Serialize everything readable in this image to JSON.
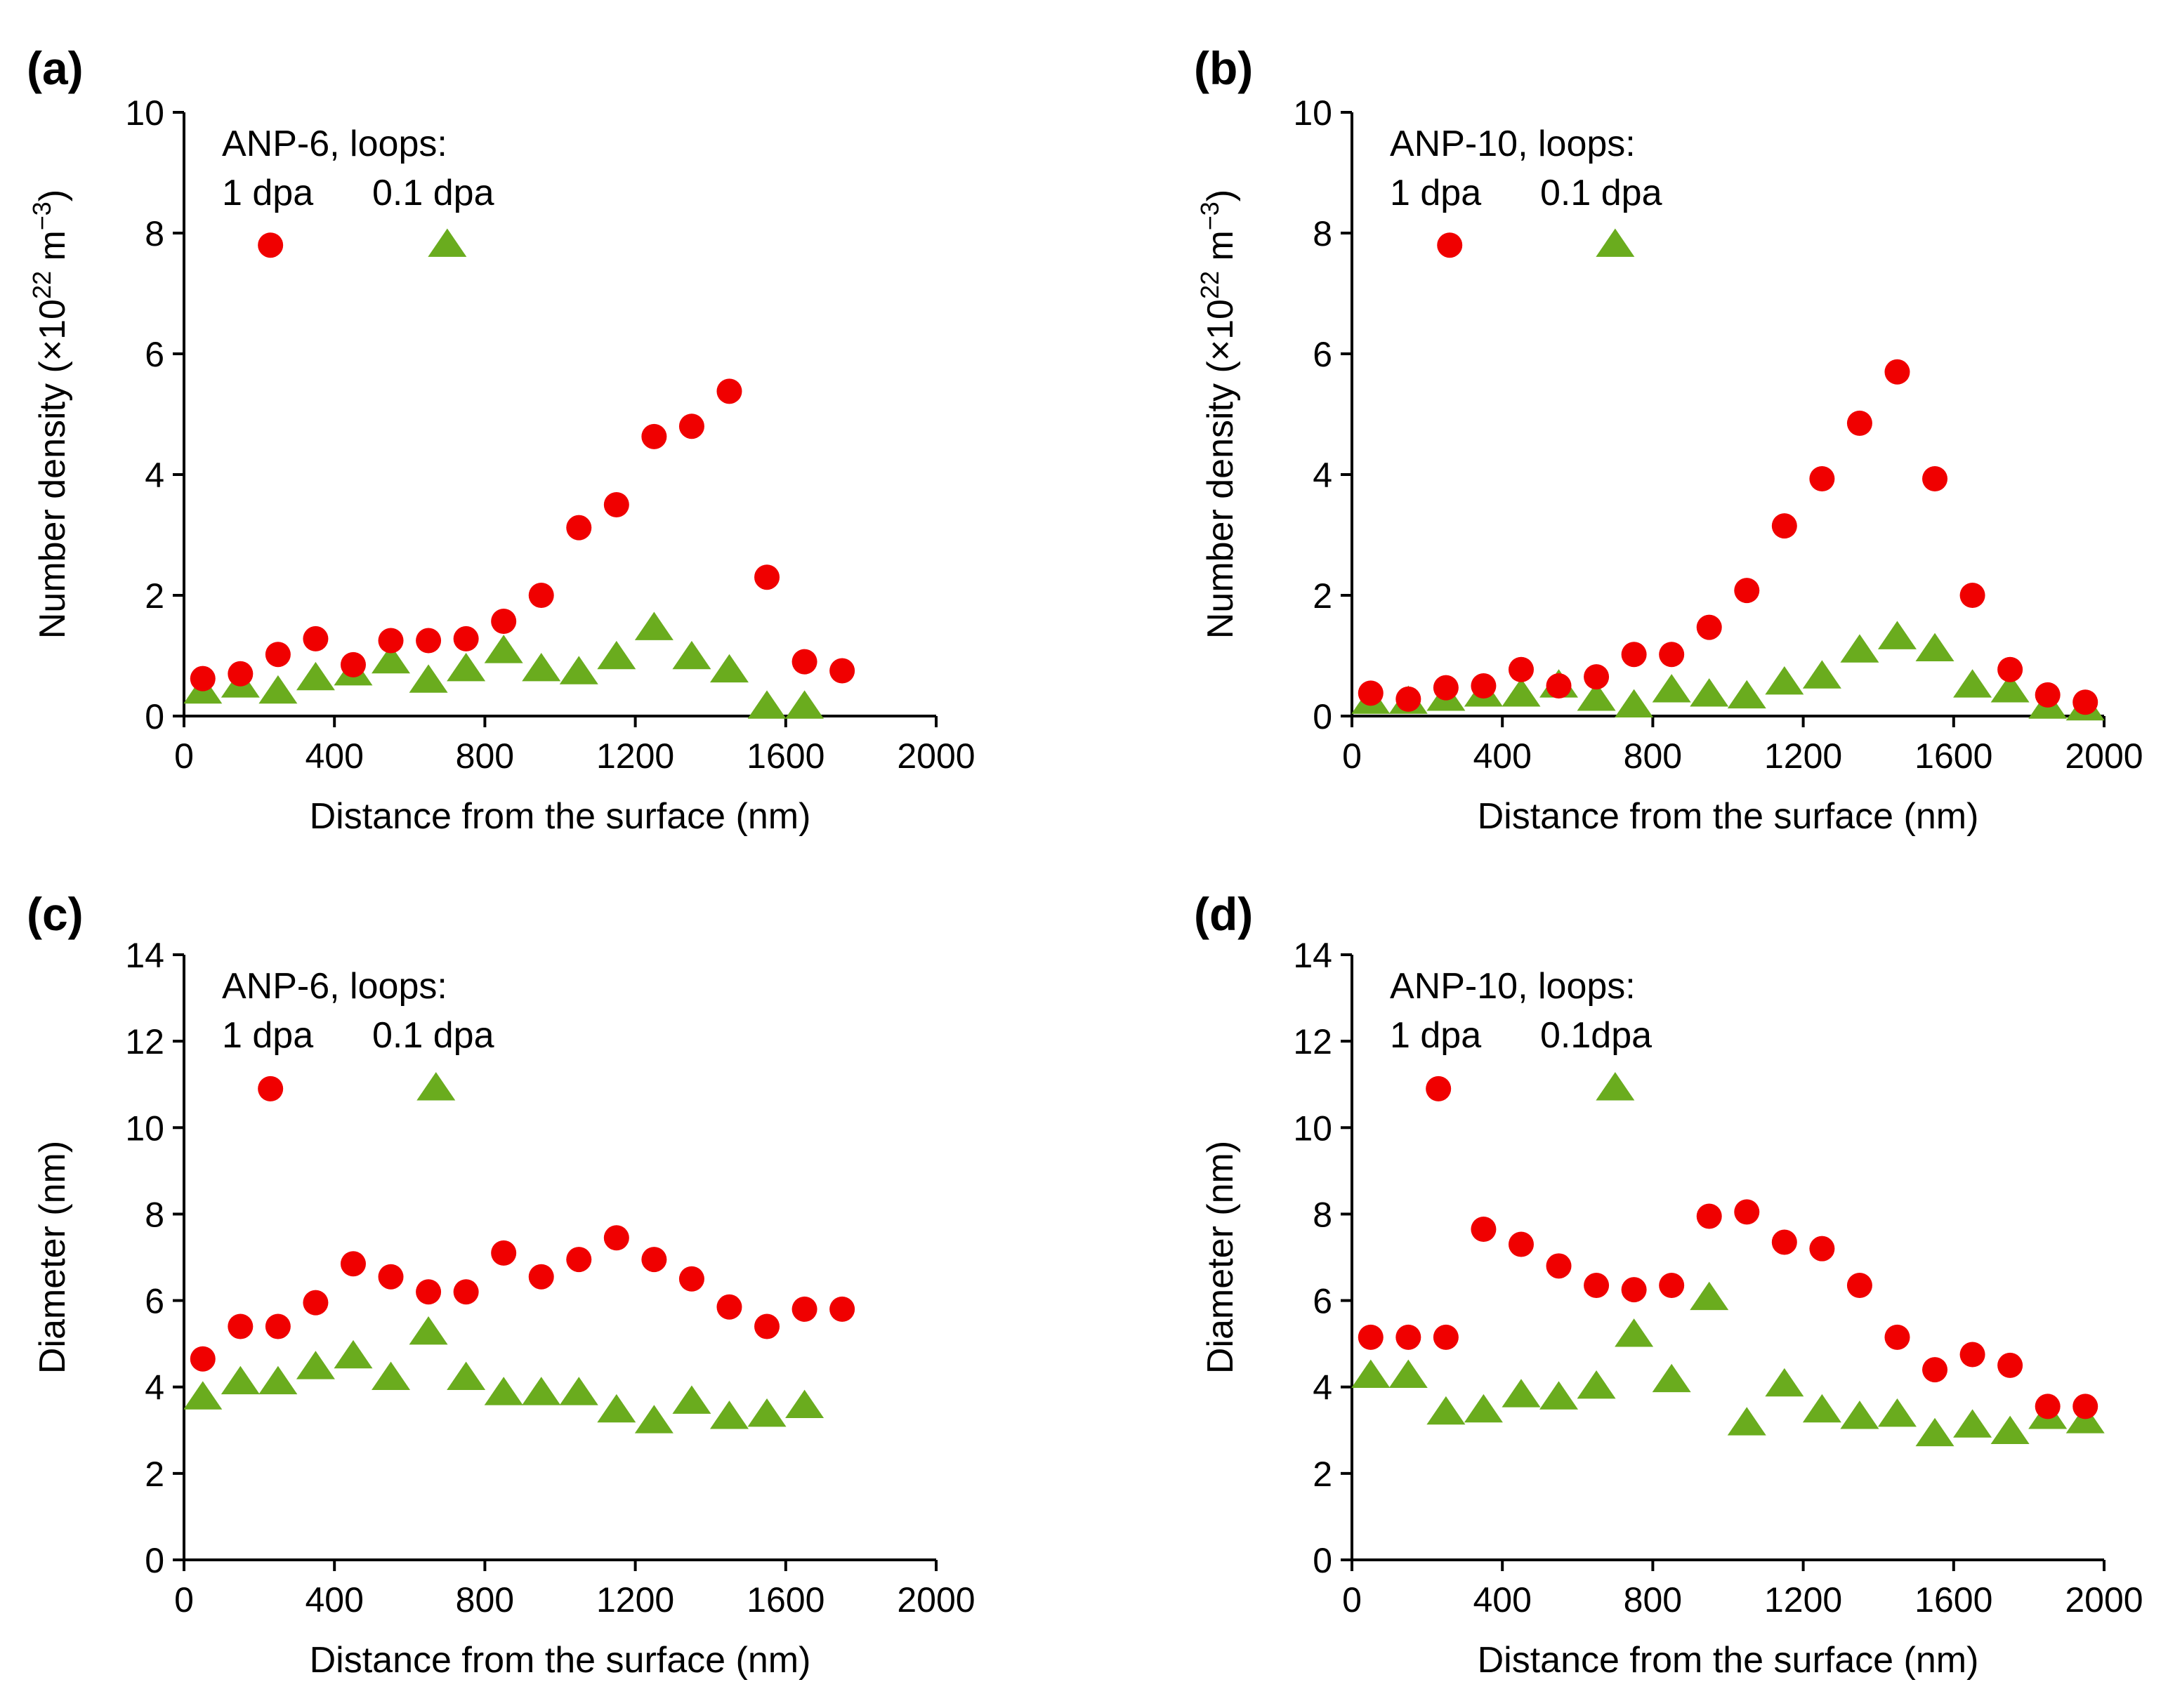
{
  "colors": {
    "series_1dpa": "#f00000",
    "series_01dpa": "#6aac1e"
  },
  "chart_data": [
    {
      "panel": "(a)",
      "type": "scatter",
      "title": "",
      "legend_title": "ANP-6, loops:",
      "xlabel": "Distance from the surface (nm)",
      "ylabel_main": "Number density (×10",
      "ylabel_sup1": "22",
      "ylabel_mid": " m",
      "ylabel_sup2": "−3",
      "ylabel_end": ")",
      "xlim": [
        0,
        2000
      ],
      "ylim": [
        0,
        10
      ],
      "xticks": [
        0,
        400,
        800,
        1200,
        1600,
        2000
      ],
      "yticks": [
        0,
        2,
        4,
        6,
        8,
        10
      ],
      "legend_markers": [
        {
          "name": "1 dpa",
          "marker": "circle",
          "x": 230,
          "y": 7.8
        },
        {
          "name": "0.1 dpa",
          "marker": "triangle",
          "x": 700,
          "y": 7.8
        }
      ],
      "series": [
        {
          "name": "1 dpa",
          "marker": "circle",
          "x": [
            50,
            150,
            250,
            350,
            450,
            550,
            650,
            750,
            850,
            950,
            1050,
            1150,
            1250,
            1350,
            1450,
            1550,
            1650,
            1750
          ],
          "y": [
            0.62,
            0.7,
            1.02,
            1.28,
            0.85,
            1.25,
            1.25,
            1.28,
            1.57,
            2.0,
            3.12,
            3.5,
            4.63,
            4.8,
            5.38,
            2.3,
            0.9,
            0.75
          ]
        },
        {
          "name": "0.1 dpa",
          "marker": "triangle",
          "x": [
            50,
            150,
            250,
            350,
            450,
            550,
            650,
            750,
            850,
            950,
            1050,
            1150,
            1250,
            1350,
            1450,
            1550,
            1650
          ],
          "y": [
            0.4,
            0.5,
            0.4,
            0.62,
            0.7,
            0.9,
            0.58,
            0.77,
            1.07,
            0.77,
            0.72,
            0.97,
            1.45,
            0.97,
            0.75,
            0.15,
            0.15
          ]
        }
      ]
    },
    {
      "panel": "(b)",
      "type": "scatter",
      "title": "",
      "legend_title": "ANP-10, loops:",
      "xlabel": "Distance from the surface (nm)",
      "ylabel_main": "Number density (×10",
      "ylabel_sup1": "22",
      "ylabel_mid": " m",
      "ylabel_sup2": "−3",
      "ylabel_end": ")",
      "xlim": [
        0,
        2000
      ],
      "ylim": [
        0,
        10
      ],
      "xticks": [
        0,
        400,
        800,
        1200,
        1600,
        2000
      ],
      "yticks": [
        0,
        2,
        4,
        6,
        8,
        10
      ],
      "legend_markers": [
        {
          "name": "1 dpa",
          "marker": "circle",
          "x": 260,
          "y": 7.8
        },
        {
          "name": "0.1 dpa",
          "marker": "triangle",
          "x": 700,
          "y": 7.8
        }
      ],
      "series": [
        {
          "name": "1 dpa",
          "marker": "circle",
          "x": [
            50,
            150,
            250,
            350,
            450,
            550,
            650,
            750,
            850,
            950,
            1050,
            1150,
            1250,
            1350,
            1450,
            1550,
            1650,
            1750,
            1850,
            1950
          ],
          "y": [
            0.38,
            0.28,
            0.47,
            0.5,
            0.77,
            0.5,
            0.65,
            1.02,
            1.02,
            1.47,
            2.08,
            3.15,
            3.93,
            4.85,
            5.7,
            3.93,
            2.0,
            0.77,
            0.35,
            0.23
          ]
        },
        {
          "name": "0.1 dpa",
          "marker": "triangle",
          "x": [
            50,
            150,
            250,
            350,
            450,
            550,
            650,
            750,
            850,
            950,
            1050,
            1150,
            1250,
            1350,
            1450,
            1550,
            1650,
            1750,
            1850,
            1950
          ],
          "y": [
            0.23,
            0.23,
            0.28,
            0.35,
            0.35,
            0.5,
            0.28,
            0.17,
            0.42,
            0.35,
            0.32,
            0.55,
            0.65,
            1.08,
            1.3,
            1.1,
            0.5,
            0.42,
            0.15,
            0.12
          ]
        }
      ]
    },
    {
      "panel": "(c)",
      "type": "scatter",
      "title": "",
      "legend_title": "ANP-6, loops:",
      "xlabel": "Distance from the surface (nm)",
      "ylabel_main": "Diameter (nm)",
      "xlim": [
        0,
        2000
      ],
      "ylim": [
        0,
        14
      ],
      "xticks": [
        0,
        400,
        800,
        1200,
        1600,
        2000
      ],
      "yticks": [
        0,
        2,
        4,
        6,
        8,
        10,
        12,
        14
      ],
      "legend_markers": [
        {
          "name": "1 dpa",
          "marker": "circle",
          "x": 230,
          "y": 10.9
        },
        {
          "name": "0.1 dpa",
          "marker": "triangle",
          "x": 670,
          "y": 10.9
        }
      ],
      "series": [
        {
          "name": "1 dpa",
          "marker": "circle",
          "x": [
            50,
            150,
            250,
            350,
            450,
            550,
            650,
            750,
            850,
            950,
            1050,
            1150,
            1250,
            1350,
            1450,
            1550,
            1650,
            1750
          ],
          "y": [
            4.65,
            5.4,
            5.4,
            5.95,
            6.85,
            6.55,
            6.2,
            6.2,
            7.1,
            6.55,
            6.95,
            7.45,
            6.95,
            6.5,
            5.85,
            5.4,
            5.8,
            5.8
          ]
        },
        {
          "name": "0.1 dpa",
          "marker": "triangle",
          "x": [
            50,
            150,
            250,
            350,
            450,
            550,
            650,
            750,
            850,
            950,
            1050,
            1150,
            1250,
            1350,
            1450,
            1550,
            1650
          ],
          "y": [
            3.75,
            4.1,
            4.1,
            4.45,
            4.7,
            4.2,
            5.25,
            4.2,
            3.85,
            3.85,
            3.85,
            3.45,
            3.2,
            3.65,
            3.3,
            3.35,
            3.55
          ]
        }
      ]
    },
    {
      "panel": "(d)",
      "type": "scatter",
      "title": "",
      "legend_title": "ANP-10, loops:",
      "xlabel": "Distance from the surface (nm)",
      "ylabel_main": "Diameter (nm)",
      "xlim": [
        0,
        2000
      ],
      "ylim": [
        0,
        14
      ],
      "xticks": [
        0,
        400,
        800,
        1200,
        1600,
        2000
      ],
      "yticks": [
        0,
        2,
        4,
        6,
        8,
        10,
        12,
        14
      ],
      "legend_markers": [
        {
          "name": "1 dpa",
          "marker": "circle",
          "x": 230,
          "y": 10.9
        },
        {
          "name": "0.1dpa",
          "marker": "triangle",
          "x": 700,
          "y": 10.9
        }
      ],
      "series": [
        {
          "name": "1 dpa",
          "marker": "circle",
          "x": [
            50,
            150,
            250,
            350,
            450,
            550,
            650,
            750,
            850,
            950,
            1050,
            1150,
            1250,
            1350,
            1450,
            1550,
            1650,
            1750,
            1850,
            1950
          ],
          "y": [
            5.15,
            5.15,
            5.15,
            7.65,
            7.3,
            6.8,
            6.35,
            6.25,
            6.35,
            7.95,
            8.05,
            7.35,
            7.2,
            6.35,
            5.15,
            4.4,
            4.75,
            4.5,
            3.55,
            3.55
          ]
        },
        {
          "name": "0.1dpa",
          "marker": "triangle",
          "x": [
            50,
            150,
            250,
            350,
            450,
            550,
            650,
            750,
            850,
            950,
            1050,
            1150,
            1250,
            1350,
            1450,
            1550,
            1650,
            1750,
            1850,
            1950
          ],
          "y": [
            4.25,
            4.25,
            3.4,
            3.45,
            3.8,
            3.75,
            4.0,
            5.2,
            4.15,
            6.05,
            3.15,
            4.05,
            3.45,
            3.3,
            3.35,
            2.9,
            3.1,
            2.95,
            3.3,
            3.2
          ]
        }
      ]
    }
  ]
}
